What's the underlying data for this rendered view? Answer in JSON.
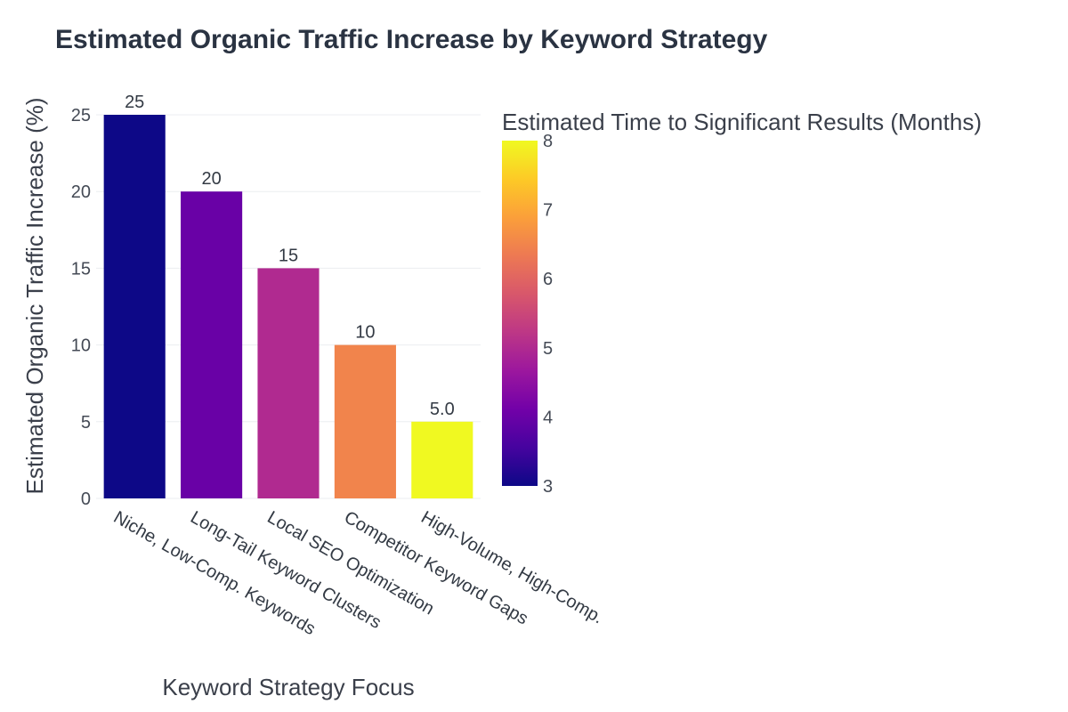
{
  "colors": {
    "scale": [
      "#0d0887",
      "#46039f",
      "#7201a8",
      "#9c179e",
      "#bd3786",
      "#d8576b",
      "#ed7953",
      "#fb9f3a",
      "#fdca26",
      "#f0f921"
    ],
    "grid": "#ebedf0",
    "text": "#444a55"
  },
  "chart_data": {
    "type": "bar",
    "title": "Estimated Organic Traffic Increase by Keyword Strategy",
    "xlabel": "Keyword Strategy Focus",
    "ylabel": "Estimated Organic Traffic Increase (%)",
    "categories": [
      "Niche, Low-Comp. Keywords",
      "Long-Tail Keyword Clusters",
      "Local SEO Optimization",
      "Competitor Keyword Gaps",
      "High-Volume, High-Comp."
    ],
    "values": [
      25,
      20,
      15,
      10,
      5
    ],
    "data_labels": [
      "25",
      "20",
      "15",
      "10",
      "5.0"
    ],
    "ylim": [
      0,
      25
    ],
    "yticks": [
      0,
      5,
      10,
      15,
      20,
      25
    ],
    "grid": true,
    "color_values": [
      3,
      4,
      5,
      6.5,
      8
    ],
    "colorbar": {
      "title": "Estimated Time to Significant Results (Months)",
      "range": [
        3,
        8
      ],
      "ticks": [
        3,
        4,
        5,
        6,
        7,
        8
      ]
    }
  }
}
